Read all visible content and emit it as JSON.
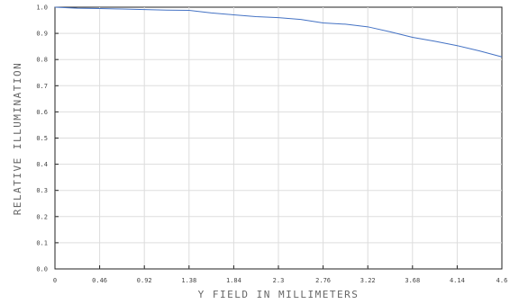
{
  "chart_data": {
    "type": "line",
    "title": "",
    "xlabel": "Y FIELD IN MILLIMETERS",
    "ylabel": "RELATIVE ILLUMINATION",
    "xlim": [
      0,
      4.6
    ],
    "ylim": [
      0.0,
      1.0
    ],
    "x_ticks": [
      "0",
      "0.46",
      "0.92",
      "1.38",
      "1.84",
      "2.3",
      "2.76",
      "3.22",
      "3.68",
      "4.14",
      "4.6"
    ],
    "y_ticks": [
      "0.0",
      "0.1",
      "0.2",
      "0.3",
      "0.4",
      "0.5",
      "0.6",
      "0.7",
      "0.8",
      "0.9",
      "1.0"
    ],
    "grid": true,
    "series": [
      {
        "color": "#4472c4",
        "x": [
          0,
          0.23,
          0.46,
          0.69,
          0.92,
          1.15,
          1.38,
          1.61,
          1.84,
          2.07,
          2.3,
          2.53,
          2.76,
          2.99,
          3.22,
          3.45,
          3.68,
          3.91,
          4.14,
          4.37,
          4.6
        ],
        "values": [
          1.0,
          0.996,
          0.995,
          0.993,
          0.991,
          0.989,
          0.988,
          0.978,
          0.971,
          0.964,
          0.96,
          0.953,
          0.94,
          0.935,
          0.925,
          0.906,
          0.885,
          0.87,
          0.853,
          0.833,
          0.81
        ]
      }
    ]
  }
}
